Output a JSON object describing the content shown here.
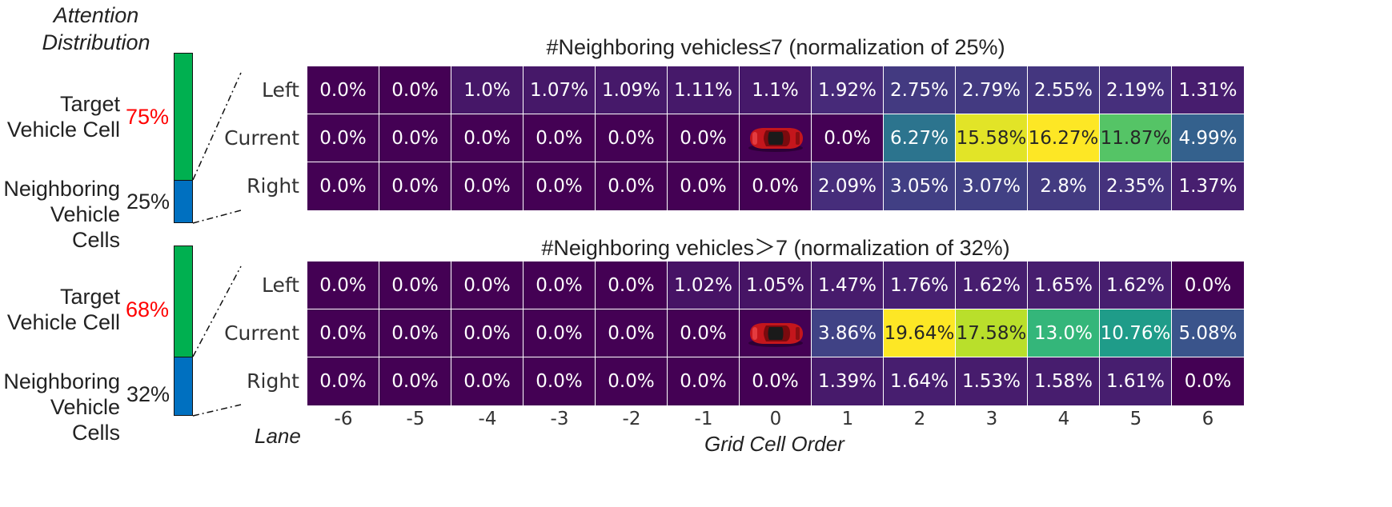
{
  "figure": {
    "side_title": [
      "Attention",
      "Distribution"
    ],
    "xlabel": "Grid Cell Order",
    "lane_label": "Lane"
  },
  "colors": {
    "target_bar": "#00b050",
    "neighbor_bar": "#0070c0",
    "highlight_pct": "#ff0000"
  },
  "chart_data": [
    {
      "type": "heatmap",
      "title": "#Neighboring vehicles≤7 (normalization of 25%)",
      "rows": [
        "Left",
        "Current",
        "Right"
      ],
      "columns": [
        "-6",
        "-5",
        "-4",
        "-3",
        "-2",
        "-1",
        "0",
        "1",
        "2",
        "3",
        "4",
        "5",
        "6"
      ],
      "values": [
        [
          0.0,
          0.0,
          1.0,
          1.07,
          1.09,
          1.11,
          1.1,
          1.92,
          2.75,
          2.79,
          2.55,
          2.19,
          1.31
        ],
        [
          0.0,
          0.0,
          0.0,
          0.0,
          0.0,
          0.0,
          null,
          0.0,
          6.27,
          15.58,
          16.27,
          11.87,
          4.99
        ],
        [
          0.0,
          0.0,
          0.0,
          0.0,
          0.0,
          0.0,
          0.0,
          2.09,
          3.05,
          3.07,
          2.8,
          2.35,
          1.37
        ]
      ],
      "labels": [
        [
          "0.0%",
          "0.0%",
          "1.0%",
          "1.07%",
          "1.09%",
          "1.11%",
          "1.1%",
          "1.92%",
          "2.75%",
          "2.79%",
          "2.55%",
          "2.19%",
          "1.31%"
        ],
        [
          "0.0%",
          "0.0%",
          "0.0%",
          "0.0%",
          "0.0%",
          "0.0%",
          "",
          "0.0%",
          "6.27%",
          "15.58%",
          "16.27%",
          "11.87%",
          "4.99%"
        ],
        [
          "0.0%",
          "0.0%",
          "0.0%",
          "0.0%",
          "0.0%",
          "0.0%",
          "0.0%",
          "2.09%",
          "3.05%",
          "3.07%",
          "2.8%",
          "2.35%",
          "1.37%"
        ]
      ],
      "vmax": 16.27,
      "ego_vehicle_cell": {
        "row": "Current",
        "column": "0",
        "icon": "red-car-icon"
      },
      "attention_split": {
        "target_label": [
          "Target",
          "Vehicle Cell"
        ],
        "target_pct": "75%",
        "target_value": 75,
        "neighbor_label": [
          "Neighboring",
          "Vehicle Cells"
        ],
        "neighbor_pct": "25%",
        "neighbor_value": 25
      }
    },
    {
      "type": "heatmap",
      "title": "#Neighboring vehicles＞7 (normalization of 32%)",
      "rows": [
        "Left",
        "Current",
        "Right"
      ],
      "columns": [
        "-6",
        "-5",
        "-4",
        "-3",
        "-2",
        "-1",
        "0",
        "1",
        "2",
        "3",
        "4",
        "5",
        "6"
      ],
      "values": [
        [
          0.0,
          0.0,
          0.0,
          0.0,
          0.0,
          1.02,
          1.05,
          1.47,
          1.76,
          1.62,
          1.65,
          1.62,
          0.0
        ],
        [
          0.0,
          0.0,
          0.0,
          0.0,
          0.0,
          0.0,
          null,
          3.86,
          19.64,
          17.58,
          13.0,
          10.76,
          5.08
        ],
        [
          0.0,
          0.0,
          0.0,
          0.0,
          0.0,
          0.0,
          0.0,
          1.39,
          1.64,
          1.53,
          1.58,
          1.61,
          0.0
        ]
      ],
      "labels": [
        [
          "0.0%",
          "0.0%",
          "0.0%",
          "0.0%",
          "0.0%",
          "1.02%",
          "1.05%",
          "1.47%",
          "1.76%",
          "1.62%",
          "1.65%",
          "1.62%",
          "0.0%"
        ],
        [
          "0.0%",
          "0.0%",
          "0.0%",
          "0.0%",
          "0.0%",
          "0.0%",
          "",
          "3.86%",
          "19.64%",
          "17.58%",
          "13.0%",
          "10.76%",
          "5.08%"
        ],
        [
          "0.0%",
          "0.0%",
          "0.0%",
          "0.0%",
          "0.0%",
          "0.0%",
          "0.0%",
          "1.39%",
          "1.64%",
          "1.53%",
          "1.58%",
          "1.61%",
          "0.0%"
        ]
      ],
      "vmax": 19.64,
      "ego_vehicle_cell": {
        "row": "Current",
        "column": "0",
        "icon": "red-car-icon"
      },
      "attention_split": {
        "target_label": [
          "Target",
          "Vehicle Cell"
        ],
        "target_pct": "68%",
        "target_value": 68,
        "neighbor_label": [
          "Neighboring",
          "Vehicle Cells"
        ],
        "neighbor_pct": "32%",
        "neighbor_value": 32
      }
    }
  ]
}
